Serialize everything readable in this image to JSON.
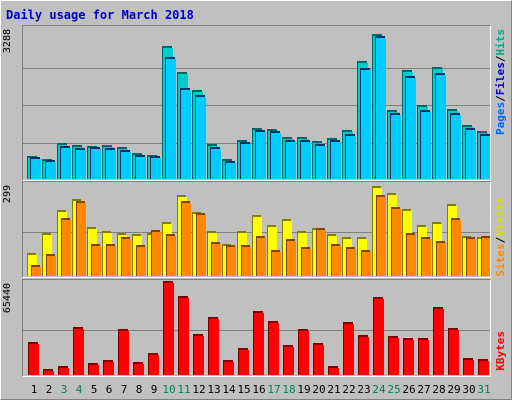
{
  "title": "Daily usage for March 2018",
  "colors": {
    "hits": "#00ccff",
    "hits_shadow": "#003366",
    "files": "#00cccc",
    "files_shadow": "#006666",
    "pages": "#0066ff",
    "sites": "#ff8800",
    "sites_shadow": "#804400",
    "visits": "#ffff00",
    "visits_shadow": "#808000",
    "kbytes": "#ff0000",
    "kbytes_shadow": "#800000",
    "weekend_day": "#00805c"
  },
  "axis": {
    "top_max": "3288",
    "mid_max": "299",
    "bot_max": "65440"
  },
  "legend": {
    "pages": "Pages",
    "files": "Files",
    "hits": "Hits",
    "sep": "/",
    "sites": "Sites",
    "visits": "Visits",
    "kbytes": "KBytes"
  },
  "chart_data": [
    {
      "type": "bar",
      "title": "Daily usage for March 2018",
      "categories": [
        "1",
        "2",
        "3",
        "4",
        "5",
        "6",
        "7",
        "8",
        "9",
        "10",
        "11",
        "12",
        "13",
        "14",
        "15",
        "16",
        "17",
        "18",
        "19",
        "20",
        "21",
        "22",
        "23",
        "24",
        "25",
        "26",
        "27",
        "28",
        "29",
        "30",
        "31"
      ],
      "weekend_days": [
        "3",
        "4",
        "10",
        "11",
        "17",
        "18",
        "24",
        "25",
        "31"
      ],
      "ylim": [
        0,
        3288
      ],
      "series": [
        {
          "name": "Hits",
          "values": [
            460,
            400,
            750,
            700,
            680,
            700,
            650,
            520,
            480,
            2880,
            2300,
            1900,
            720,
            400,
            820,
            1080,
            1050,
            880,
            880,
            800,
            860,
            1020,
            2550,
            3130,
            1460,
            2350,
            1570,
            2420,
            1500,
            1150,
            1000
          ]
        },
        {
          "name": "Files",
          "values": [
            440,
            380,
            680,
            630,
            650,
            640,
            600,
            490,
            460,
            2620,
            1950,
            1790,
            650,
            360,
            760,
            1030,
            1000,
            820,
            820,
            730,
            810,
            950,
            2400,
            3080,
            1400,
            2220,
            1470,
            2290,
            1400,
            1080,
            950
          ]
        },
        {
          "name": "Pages",
          "values": [
            0,
            0,
            0,
            0,
            0,
            0,
            0,
            0,
            0,
            0,
            0,
            0,
            0,
            0,
            0,
            0,
            0,
            0,
            0,
            0,
            0,
            0,
            0,
            0,
            0,
            0,
            0,
            0,
            0,
            0,
            0
          ]
        }
      ]
    },
    {
      "type": "bar",
      "categories": [
        "1",
        "2",
        "3",
        "4",
        "5",
        "6",
        "7",
        "8",
        "9",
        "10",
        "11",
        "12",
        "13",
        "14",
        "15",
        "16",
        "17",
        "18",
        "19",
        "20",
        "21",
        "22",
        "23",
        "24",
        "25",
        "26",
        "27",
        "28",
        "29",
        "30",
        "31"
      ],
      "ylim": [
        0,
        299
      ],
      "series": [
        {
          "name": "Visits",
          "values": [
            68,
            135,
            210,
            245,
            155,
            140,
            135,
            130,
            135,
            170,
            260,
            205,
            140,
            100,
            140,
            195,
            160,
            180,
            140,
            150,
            130,
            120,
            120,
            290,
            265,
            215,
            160,
            170,
            230,
            125,
            120
          ]
        },
        {
          "name": "Sites",
          "values": [
            30,
            65,
            185,
            240,
            100,
            100,
            120,
            95,
            145,
            130,
            240,
            200,
            105,
            95,
            95,
            125,
            80,
            115,
            90,
            150,
            100,
            90,
            80,
            260,
            220,
            135,
            120,
            110,
            185,
            120,
            125
          ]
        }
      ]
    },
    {
      "type": "bar",
      "categories": [
        "1",
        "2",
        "3",
        "4",
        "5",
        "6",
        "7",
        "8",
        "9",
        "10",
        "11",
        "12",
        "13",
        "14",
        "15",
        "16",
        "17",
        "18",
        "19",
        "20",
        "21",
        "22",
        "23",
        "24",
        "25",
        "26",
        "27",
        "28",
        "29",
        "30",
        "31"
      ],
      "ylim": [
        0,
        65440
      ],
      "series": [
        {
          "name": "KBytes",
          "values": [
            22000,
            3000,
            5000,
            33000,
            7000,
            9000,
            31000,
            8000,
            14000,
            65440,
            55000,
            28000,
            40000,
            9000,
            18000,
            44000,
            37000,
            20000,
            31000,
            21000,
            5000,
            36000,
            27000,
            54000,
            26000,
            25000,
            25000,
            47000,
            32000,
            11000,
            10000
          ]
        }
      ]
    }
  ]
}
